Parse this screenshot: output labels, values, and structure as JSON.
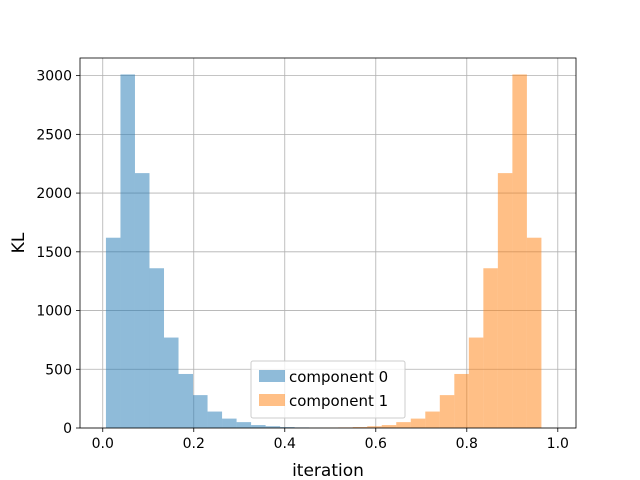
{
  "chart_data": {
    "type": "bar",
    "title": "",
    "xlabel": "iteration",
    "ylabel": "KL",
    "xlim": [
      -0.05,
      1.04
    ],
    "ylim": [
      0,
      3150
    ],
    "xticks": [
      "0.0",
      "0.2",
      "0.4",
      "0.6",
      "0.8",
      "1.0"
    ],
    "xtick_values": [
      0.0,
      0.2,
      0.4,
      0.6,
      0.8,
      1.0
    ],
    "yticks": [
      "0",
      "500",
      "1000",
      "1500",
      "2000",
      "2500",
      "3000"
    ],
    "ytick_values": [
      0,
      500,
      1000,
      1500,
      2000,
      2500,
      3000
    ],
    "grid": true,
    "legend_position": "bottom-center",
    "bin_width": 0.0319,
    "series": [
      {
        "name": "component 0",
        "color": "#1f77b4",
        "alpha": 0.5,
        "bin_start": 0.007,
        "values": [
          1620,
          3010,
          2170,
          1360,
          770,
          460,
          280,
          140,
          80,
          50,
          25,
          15,
          8,
          5,
          3,
          2,
          1,
          1,
          1,
          0,
          0,
          0,
          0,
          0,
          0,
          0,
          0,
          0,
          0,
          0
        ]
      },
      {
        "name": "component 1",
        "color": "#ff7f0e",
        "alpha": 0.5,
        "bin_start": 0.007,
        "values": [
          0,
          0,
          0,
          0,
          0,
          0,
          0,
          0,
          0,
          0,
          0,
          1,
          1,
          1,
          2,
          3,
          5,
          8,
          15,
          25,
          50,
          80,
          140,
          280,
          460,
          770,
          1360,
          2170,
          3010,
          1620
        ]
      }
    ]
  }
}
